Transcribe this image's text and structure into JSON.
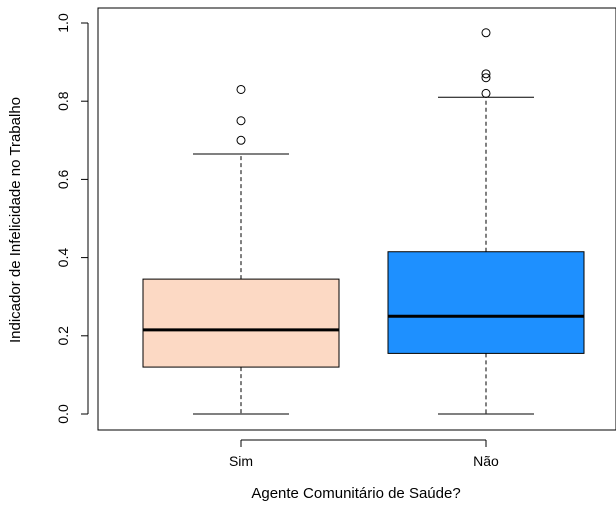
{
  "chart_data": {
    "type": "boxplot",
    "xlabel": "Agente Comunitário de Saúde?",
    "ylabel": "Indicador de Infelicidade no Trabalho",
    "ylim": [
      0.0,
      1.0
    ],
    "yticks": [
      "0.0",
      "0.2",
      "0.4",
      "0.6",
      "0.8",
      "1.0"
    ],
    "grid": false,
    "categories": [
      "Sim",
      "Não"
    ],
    "boxes": [
      {
        "category": "Sim",
        "color": "#FCD9C4",
        "whisker_low": 0.0,
        "q1": 0.12,
        "median": 0.215,
        "q3": 0.345,
        "whisker_high": 0.665,
        "outliers": [
          0.7,
          0.75,
          0.83
        ]
      },
      {
        "category": "Não",
        "color": "#1E90FF",
        "whisker_low": 0.0,
        "q1": 0.155,
        "median": 0.25,
        "q3": 0.415,
        "whisker_high": 0.81,
        "outliers": [
          0.82,
          0.86,
          0.87,
          0.975
        ]
      }
    ]
  }
}
